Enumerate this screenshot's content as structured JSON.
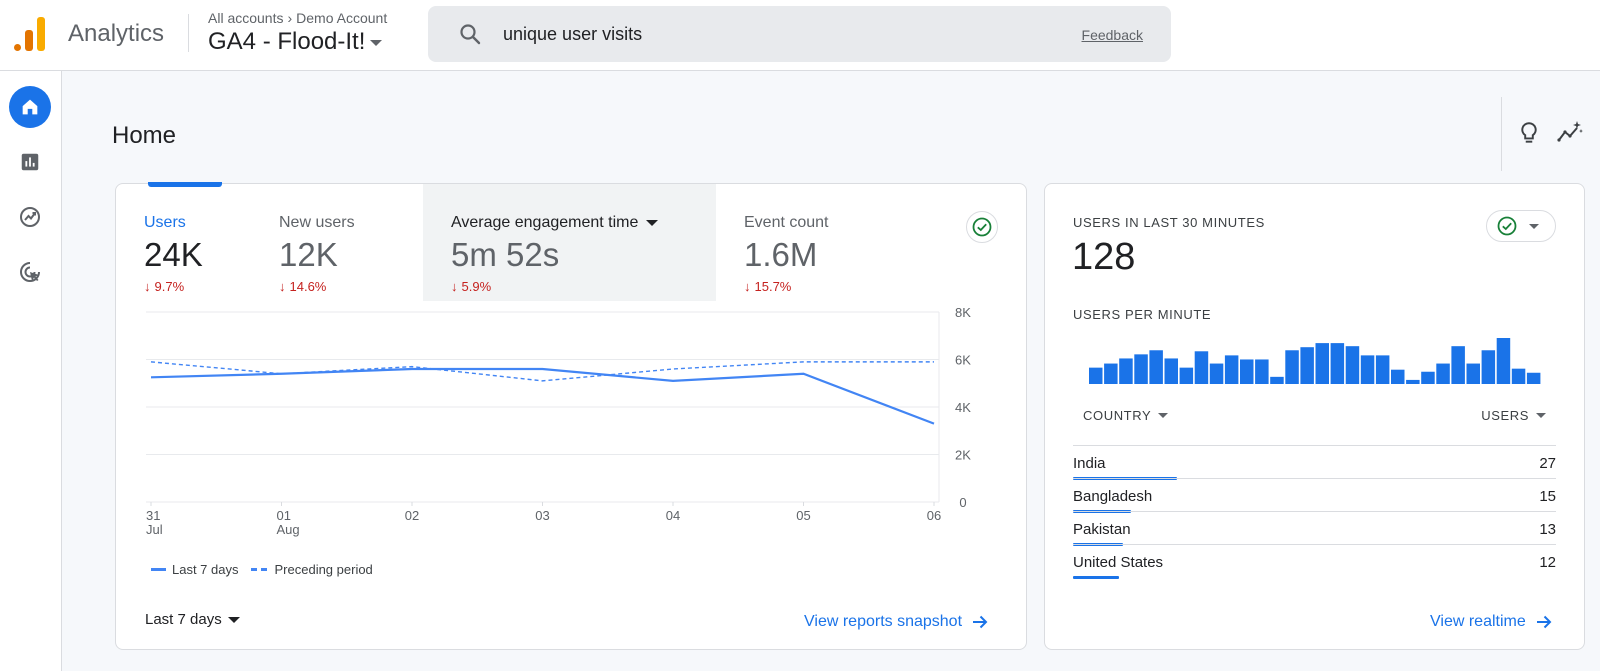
{
  "app": {
    "name": "Analytics"
  },
  "breadcrumb": {
    "parent": "All accounts",
    "child": "Demo Account"
  },
  "property": {
    "name": "GA4 - Flood-It!"
  },
  "search": {
    "query": "unique user visits",
    "feedback": "Feedback"
  },
  "page": {
    "title": "Home"
  },
  "metrics": [
    {
      "label": "Users",
      "value": "24K",
      "change": "9.7%",
      "direction": "down"
    },
    {
      "label": "New users",
      "value": "12K",
      "change": "14.6%",
      "direction": "down"
    },
    {
      "label": "Average engagement time",
      "value": "5m 52s",
      "change": "5.9%",
      "direction": "down"
    },
    {
      "label": "Event count",
      "value": "1.6M",
      "change": "15.7%",
      "direction": "down"
    }
  ],
  "chart_data": {
    "type": "line",
    "x": [
      "31 Jul",
      "01 Aug",
      "02",
      "03",
      "04",
      "05",
      "06"
    ],
    "x_tick_labels": [
      [
        "31",
        "Jul"
      ],
      [
        "01",
        "Aug"
      ],
      [
        "02",
        ""
      ],
      [
        "03",
        ""
      ],
      [
        "04",
        ""
      ],
      [
        "05",
        ""
      ],
      [
        "06",
        ""
      ]
    ],
    "series": [
      {
        "name": "Last 7 days",
        "style": "solid",
        "values": [
          5250,
          5400,
          5600,
          5600,
          5100,
          5400,
          3300
        ]
      },
      {
        "name": "Preceding period",
        "style": "dashed",
        "values": [
          5900,
          5400,
          5700,
          5100,
          5600,
          5900,
          5900
        ]
      }
    ],
    "y_ticks": [
      "0",
      "2K",
      "4K",
      "6K",
      "8K"
    ],
    "ylim": [
      0,
      8000
    ],
    "grid": true,
    "y_axis_side": "right",
    "legend_position": "bottom-left",
    "colors": {
      "line": "#4285f4",
      "grid": "#e8eaed"
    }
  },
  "legend": {
    "current": "Last 7 days",
    "previous": "Preceding period"
  },
  "date_range": {
    "label": "Last 7 days"
  },
  "links": {
    "reports": "View reports snapshot",
    "realtime": "View realtime"
  },
  "realtime": {
    "title": "USERS IN LAST 30 MINUTES",
    "value": "128",
    "per_minute_label": "USERS PER MINUTE",
    "per_minute": [
      16,
      20,
      25,
      29,
      33,
      25,
      16,
      32,
      20,
      28,
      24,
      24,
      7,
      33,
      36,
      40,
      40,
      37,
      28,
      28,
      14,
      4,
      12,
      20,
      37,
      20,
      33,
      45,
      15,
      11
    ],
    "columns": {
      "country": "COUNTRY",
      "users": "USERS"
    },
    "rows": [
      {
        "country": "India",
        "users": "27"
      },
      {
        "country": "Bangladesh",
        "users": "15"
      },
      {
        "country": "Pakistan",
        "users": "13"
      },
      {
        "country": "United States",
        "users": "12"
      }
    ]
  },
  "colors": {
    "accent": "#1a73e8",
    "negative": "#c5221f",
    "success": "#188038"
  }
}
